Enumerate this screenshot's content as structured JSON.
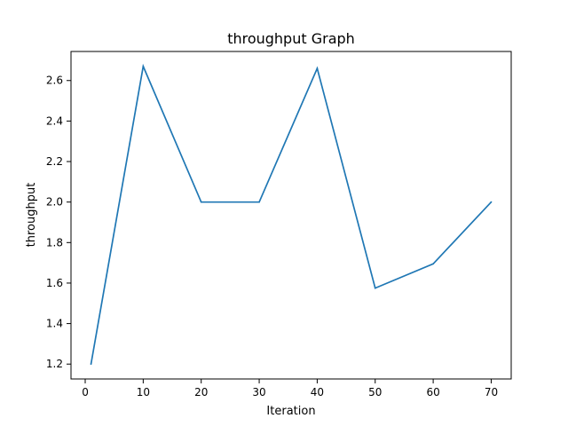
{
  "chart_data": {
    "type": "line",
    "title": "throughput Graph",
    "xlabel": "Iteration",
    "ylabel": "throughput",
    "x": [
      1,
      10,
      20,
      30,
      40,
      50,
      60,
      70
    ],
    "series": [
      {
        "values": [
          1.2,
          2.67,
          2.0,
          2.0,
          2.66,
          1.575,
          1.695,
          2.0
        ],
        "color": "#1f77b4"
      }
    ],
    "xlim": [
      -2.45,
      73.45
    ],
    "ylim": [
      1.1265,
      2.7435
    ],
    "xticks": [
      0,
      10,
      20,
      30,
      40,
      50,
      60,
      70
    ],
    "xtick_labels": [
      "0",
      "10",
      "20",
      "30",
      "40",
      "50",
      "60",
      "70"
    ],
    "yticks": [
      1.2,
      1.4,
      1.6,
      1.8,
      2.0,
      2.2,
      2.4,
      2.6
    ],
    "ytick_labels": [
      "1.2",
      "1.4",
      "1.6",
      "1.8",
      "2.0",
      "2.2",
      "2.4",
      "2.6"
    ],
    "grid": false,
    "legend": "none"
  }
}
